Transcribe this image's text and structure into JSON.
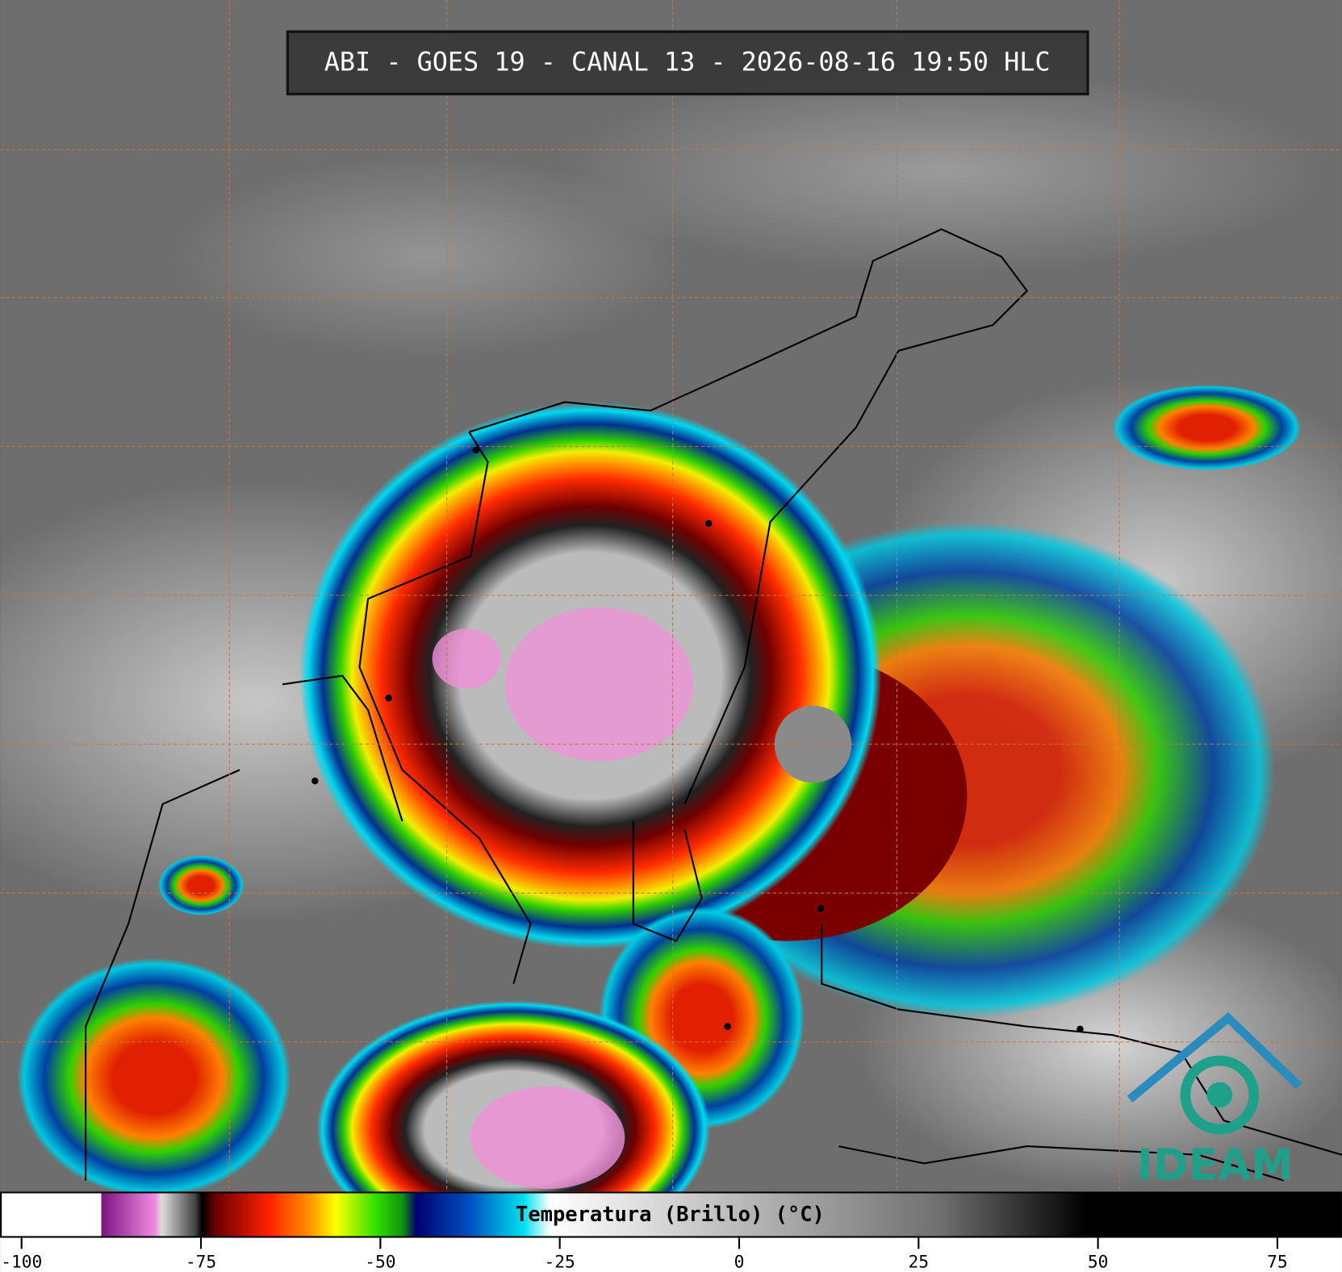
{
  "header": {
    "title": "ABI - GOES 19 - CANAL 13 - 2026-08-16 19:50 HLC"
  },
  "colorbar": {
    "label": "Temperatura (Brillo) (°C)",
    "xlim": [
      -103,
      84
    ],
    "xticks": [
      -100,
      -75,
      -50,
      -25,
      0,
      25,
      50,
      75
    ]
  },
  "logo": {
    "text": "IDEAM"
  }
}
